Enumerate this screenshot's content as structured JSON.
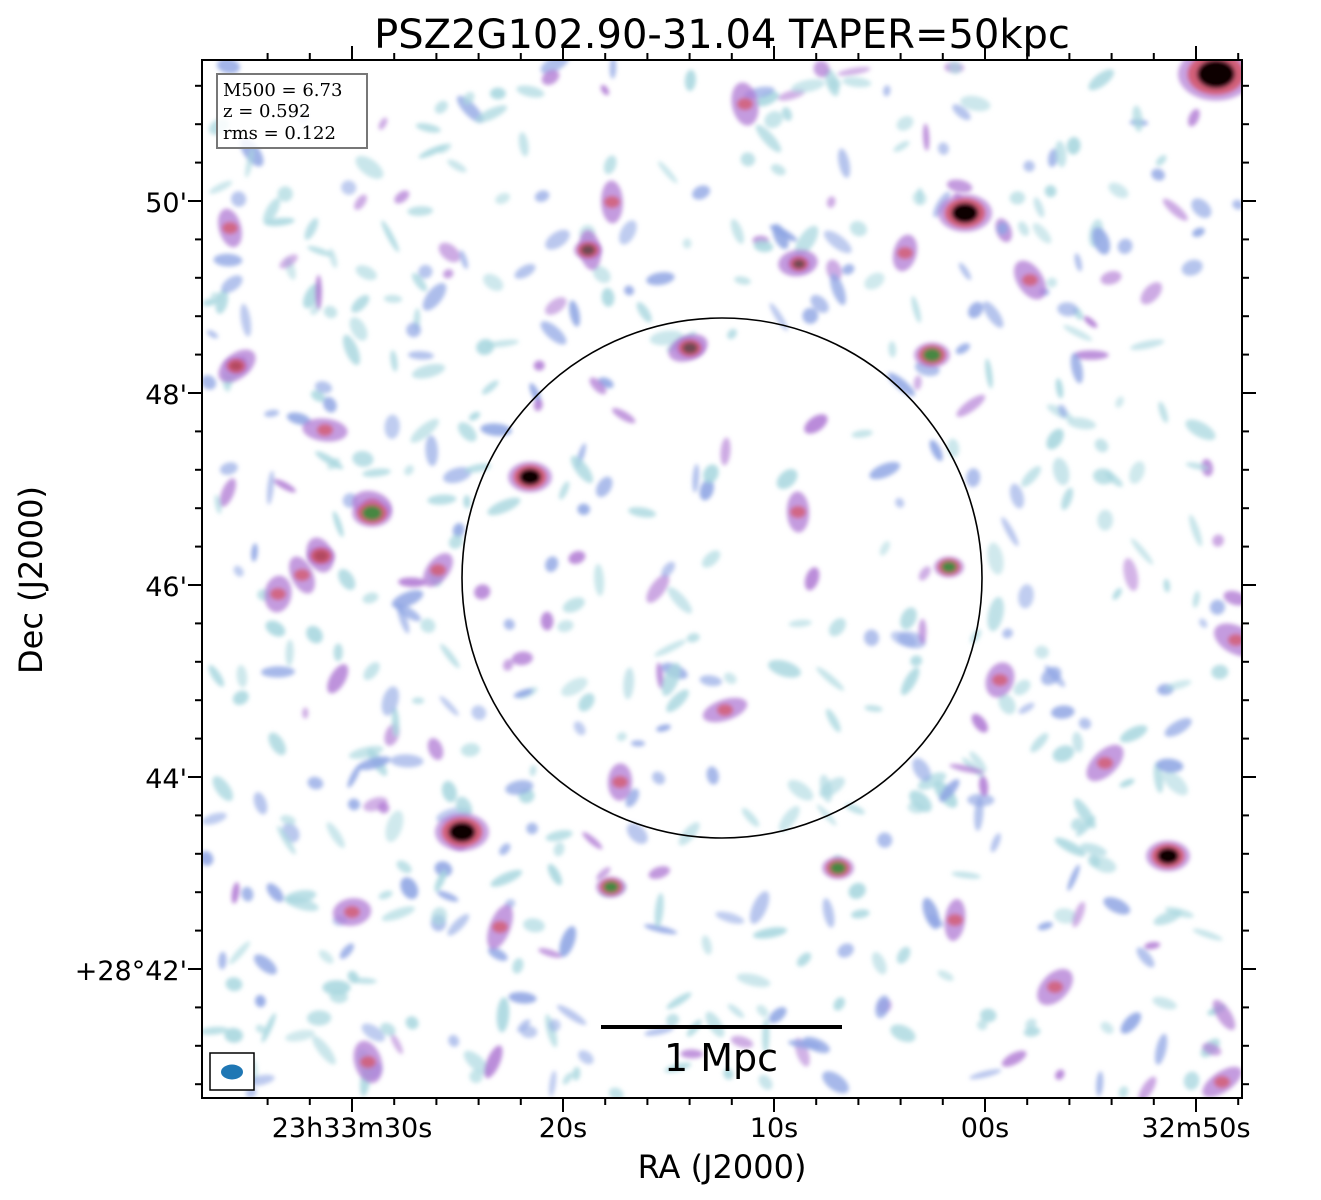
{
  "title": "PSZ2G102.90-31.04 TAPER=50kpc",
  "axes": {
    "xlabel": "RA (J2000)",
    "ylabel": "Dec (J2000)",
    "x_ticks": [
      "23h33m30s",
      "20s",
      "10s",
      "00s",
      "32m50s"
    ],
    "y_ticks": [
      "50'",
      "48'",
      "46'",
      "44'",
      "+28°42'"
    ]
  },
  "info_box": {
    "lines": [
      "M500 = 6.73",
      "z = 0.592",
      "rms = 0.122"
    ]
  },
  "scale_bar": {
    "label": "1 Mpc"
  },
  "colors": {
    "noise_light": "#a9d7df",
    "noise_blue": "#8fa5e4",
    "noise_violet": "#b07ad4",
    "source_red": "#d55a6e",
    "source_green": "#3f8a40",
    "source_core": "#000000",
    "beam": "#1f77b4"
  }
}
